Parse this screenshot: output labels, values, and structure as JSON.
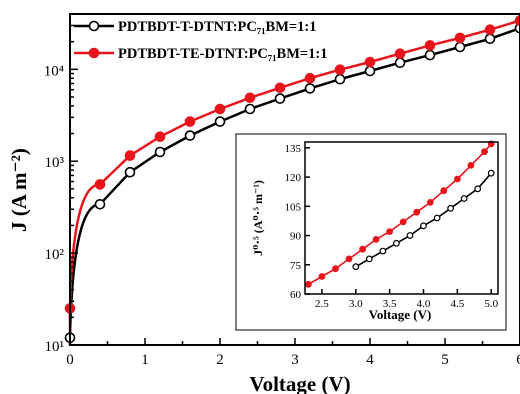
{
  "chart_data": [
    {
      "type": "line",
      "scale_y": "log",
      "xlabel": "Voltage (V)",
      "ylabel": "J (A m⁻²)",
      "xlim": [
        0,
        6
      ],
      "ylim": [
        10,
        40000
      ],
      "x_ticks": [
        "0",
        "1",
        "2",
        "3",
        "4",
        "5",
        "6"
      ],
      "y_ticks": [
        "10¹",
        "10²",
        "10³",
        "10⁴"
      ],
      "legend_position": "top-left",
      "series": [
        {
          "name": "PDTBDT-T-DTNT:PC₇₁BM=1:1",
          "color": "#000000",
          "marker": "open-circle",
          "x": [
            0.0,
            0.4,
            0.8,
            1.2,
            1.6,
            2.0,
            2.4,
            2.8,
            3.2,
            3.6,
            4.0,
            4.4,
            4.8,
            5.2,
            5.6,
            6.0
          ],
          "y": [
            12,
            340,
            760,
            1260,
            1900,
            2700,
            3700,
            4800,
            6200,
            7800,
            9600,
            11800,
            14300,
            17500,
            21500,
            28000
          ]
        },
        {
          "name": "PDTBDT-TE-DTNT:PC₇₁BM=1:1",
          "color": "#e8141b",
          "marker": "filled-circle",
          "x": [
            0.0,
            0.4,
            0.8,
            1.2,
            1.6,
            2.0,
            2.4,
            2.8,
            3.2,
            3.6,
            4.0,
            4.4,
            4.8,
            5.2,
            5.6,
            6.0
          ],
          "y": [
            25,
            560,
            1150,
            1850,
            2700,
            3700,
            4900,
            6300,
            8000,
            9900,
            12000,
            14800,
            18200,
            22000,
            27000,
            34000
          ]
        }
      ]
    },
    {
      "type": "line",
      "xlabel": "Voltage (V)",
      "ylabel": "J⁰⋅⁵ (A⁰⋅⁵ m⁻¹)",
      "xlim": [
        2.25,
        5.1
      ],
      "ylim": [
        60,
        138
      ],
      "x_ticks": [
        "2.5",
        "3.0",
        "3.5",
        "4.0",
        "4.5",
        "5.0"
      ],
      "y_ticks": [
        "60",
        "75",
        "90",
        "105",
        "120",
        "135"
      ],
      "series": [
        {
          "color": "#000000",
          "marker": "open-circle",
          "x": [
            3.0,
            3.2,
            3.4,
            3.6,
            3.8,
            4.0,
            4.2,
            4.4,
            4.6,
            4.8,
            5.0
          ],
          "y": [
            74,
            78,
            82,
            86,
            90,
            95,
            99,
            104,
            109,
            114,
            122
          ]
        },
        {
          "color": "#e8141b",
          "marker": "filled-circle",
          "x": [
            2.3,
            2.5,
            2.7,
            2.9,
            3.1,
            3.3,
            3.5,
            3.7,
            3.9,
            4.1,
            4.3,
            4.5,
            4.7,
            4.9,
            5.0
          ],
          "y": [
            65,
            69,
            73,
            78,
            83,
            88,
            92,
            97,
            102,
            107,
            113,
            119,
            126,
            133,
            137
          ]
        }
      ]
    }
  ]
}
